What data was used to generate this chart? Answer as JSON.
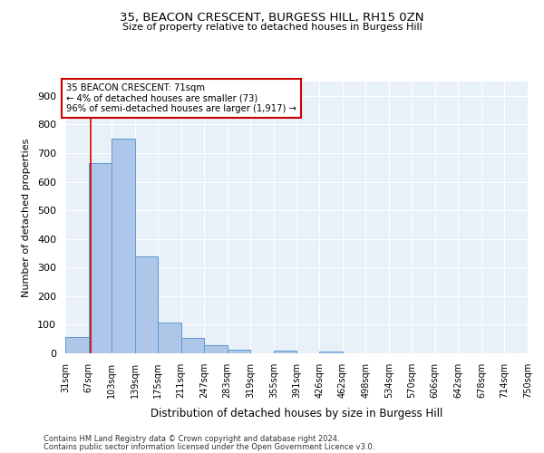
{
  "title_line1": "35, BEACON CRESCENT, BURGESS HILL, RH15 0ZN",
  "title_line2": "Size of property relative to detached houses in Burgess Hill",
  "xlabel": "Distribution of detached houses by size in Burgess Hill",
  "ylabel": "Number of detached properties",
  "bin_edges": [
    31,
    67,
    103,
    139,
    175,
    211,
    247,
    283,
    319,
    355,
    391,
    426,
    462,
    498,
    534,
    570,
    606,
    642,
    678,
    714,
    750
  ],
  "bar_heights": [
    57,
    665,
    750,
    338,
    108,
    55,
    27,
    13,
    0,
    8,
    0,
    7,
    0,
    0,
    0,
    0,
    0,
    0,
    0,
    0
  ],
  "bar_color": "#aec6e8",
  "bar_edge_color": "#5b9bd5",
  "property_size": 71,
  "vline_color": "#cc0000",
  "annotation_text": "35 BEACON CRESCENT: 71sqm\n← 4% of detached houses are smaller (73)\n96% of semi-detached houses are larger (1,917) →",
  "annotation_box_color": "#ffffff",
  "annotation_box_edge": "#cc0000",
  "ylim": [
    0,
    950
  ],
  "yticks": [
    0,
    100,
    200,
    300,
    400,
    500,
    600,
    700,
    800,
    900
  ],
  "bg_color": "#e8f0f8",
  "footnote1": "Contains HM Land Registry data © Crown copyright and database right 2024.",
  "footnote2": "Contains public sector information licensed under the Open Government Licence v3.0."
}
